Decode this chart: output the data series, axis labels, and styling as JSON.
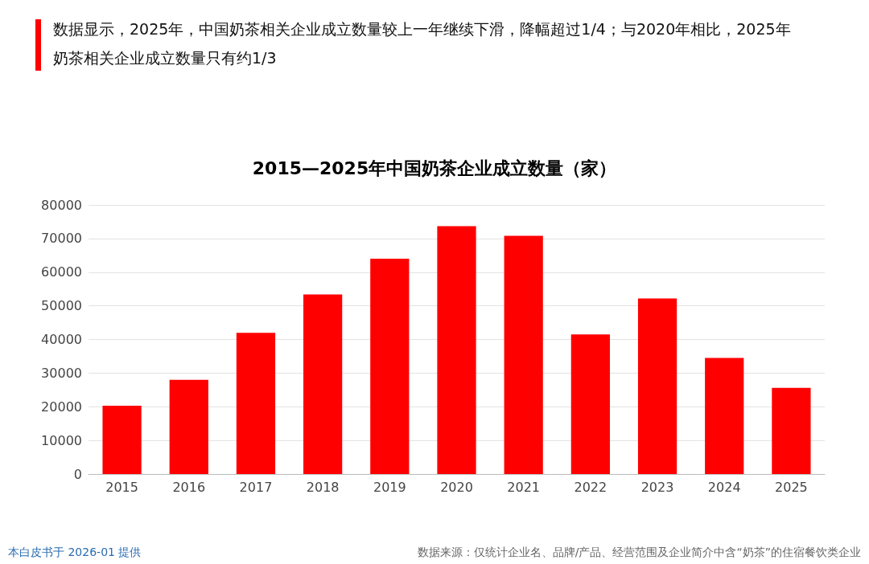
{
  "chart_data": {
    "type": "bar",
    "title": "2015—2025年中国奶茶企业成立数量（家）",
    "subtitle": "数据显示，2025年，中国奶茶相关企业成立数量较上一年继续下滑，降幅超过1/4；与2020年相比，2025年奶茶相关企业成立数量只有约1/3",
    "categories": [
      "2015",
      "2016",
      "2017",
      "2018",
      "2019",
      "2020",
      "2021",
      "2022",
      "2023",
      "2024",
      "2025"
    ],
    "values": [
      20300,
      28000,
      42000,
      53400,
      64000,
      73700,
      70800,
      41500,
      52200,
      34500,
      25600
    ],
    "color": "#ff0000",
    "ylim": [
      0,
      80000
    ],
    "yticks": [
      0,
      10000,
      20000,
      30000,
      40000,
      50000,
      60000,
      70000,
      80000
    ],
    "grid": "y",
    "annotations": [
      "本白皮书于 2026-01 提供",
      "数据来源：仅统计企业名、品牌/产品、经营范围及企业简介中含“奶茶”的住宿餐饮类企业"
    ]
  }
}
